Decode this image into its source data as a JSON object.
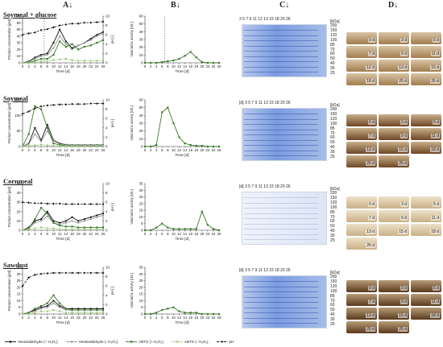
{
  "column_heads": {
    "a": "A↓",
    "b": "B↓",
    "c": "C↓",
    "d": "D↓"
  },
  "rows": [
    {
      "title": "Soymeal + glucose",
      "gel_tone": "dark",
      "photo_tone": "tan"
    },
    {
      "title": "Soymeal",
      "gel_tone": "dark",
      "photo_tone": "brown"
    },
    {
      "title": "Cornmeal",
      "gel_tone": "faint",
      "photo_tone": "cream"
    },
    {
      "title": "Sawdust",
      "gel_tone": "dark",
      "photo_tone": "darkbrown"
    }
  ],
  "axes": {
    "a_ylabel": "Product concentration [µM]",
    "a_y2label": "pH [-]",
    "b_ylabel": "Volumetric activity [U/L]",
    "xlabel": "Time [d]",
    "a_xticks": [
      "0",
      "2",
      "4",
      "6",
      "8",
      "10",
      "12",
      "14",
      "16",
      "18",
      "20",
      "22",
      "24",
      "26"
    ],
    "b_xticks": [
      "0",
      "2",
      "4",
      "6",
      "8",
      "10",
      "12",
      "14",
      "16",
      "18",
      "20",
      "22",
      "24",
      "26"
    ]
  },
  "a_yticks": [
    [
      "0",
      "10",
      "20",
      "30",
      "40",
      "50",
      "60",
      "70"
    ],
    [
      "0",
      "50",
      "100",
      "150"
    ],
    [
      "0",
      "10",
      "20",
      "30",
      "40",
      "50"
    ],
    [
      "0",
      "5",
      "10",
      "15",
      "20",
      "25",
      "30",
      "35"
    ]
  ],
  "a_y2ticks": [
    [
      "0",
      "2",
      "4",
      "6",
      "8",
      "10"
    ],
    [
      "0",
      "2",
      "4",
      "6",
      "8",
      "10"
    ],
    [
      "0",
      "2",
      "4",
      "6",
      "8",
      "10"
    ],
    [
      "0",
      "2",
      "4",
      "6",
      "8",
      "10"
    ]
  ],
  "b_yticks": [
    [
      "0",
      "10",
      "20",
      "30",
      "40",
      "50",
      "60"
    ],
    [
      "0",
      "10",
      "20",
      "30",
      "40",
      "50",
      "60"
    ],
    [
      "0",
      "5",
      "10",
      "15",
      "20",
      "25",
      "30",
      "35"
    ],
    [
      "0",
      "5",
      "10",
      "15",
      "20",
      "25",
      "30",
      "35"
    ]
  ],
  "gel": {
    "lanes_label": "[d]",
    "lanes": [
      "3",
      "5",
      "7",
      "9",
      "11",
      "12",
      "13",
      "15",
      "18",
      "20",
      "26"
    ],
    "lanes_row2": [
      "3",
      "5",
      "7",
      "9",
      "11",
      "13",
      "15",
      "18",
      "20",
      "26"
    ],
    "kda_label": "[kDa]",
    "kda": [
      "200",
      "150",
      "120",
      "100",
      "85",
      "70",
      "60",
      "50",
      "40",
      "30",
      "25"
    ]
  },
  "photos": [
    [
      "0 d",
      "3 d",
      "5 d",
      "7 d",
      "9 d",
      "11 d",
      "12 d",
      "13 d",
      "15 d",
      "18 d",
      "20 d",
      "26 d"
    ],
    [
      "0 d",
      "3 d",
      "5 d",
      "7 d",
      "9 d",
      "11 d",
      "13 d",
      "15 d",
      "18 d",
      "20 d",
      "26 d"
    ],
    [
      "0 d",
      "3 d",
      "5 d",
      "7 d",
      "9 d",
      "11 d",
      "13 d",
      "15 d",
      "18 d",
      "26 d"
    ],
    [
      "0 d",
      "3 d",
      "5 d",
      "7 d",
      "9 d",
      "11 d",
      "13 d",
      "15 d",
      "18 d",
      "20 d",
      "26 d"
    ]
  ],
  "legend": [
    {
      "label": "Veratraldehyde (+ H₂O₂)",
      "color": "#111111",
      "dash": "",
      "marker": "circle"
    },
    {
      "label": "Veratraldehyde (- H₂O₂)",
      "color": "#9a9a9a",
      "dash": "",
      "marker": "circle"
    },
    {
      "label": "ABTS (+ H₂O₂)",
      "color": "#3d7a2a",
      "dash": "",
      "marker": "square"
    },
    {
      "label": "ABTS (- H₂O₂)",
      "color": "#9fc97d",
      "dash": "2,1",
      "marker": "square"
    },
    {
      "label": "pH",
      "color": "#111111",
      "dash": "3,1.5",
      "marker": "diamond"
    }
  ],
  "chart_data": [
    {
      "type": "line",
      "panel": "A-soymeal-glucose",
      "x": [
        0,
        2,
        4,
        6,
        8,
        10,
        12,
        14,
        16,
        18,
        20,
        22,
        24,
        26
      ],
      "ylim": [
        0,
        70
      ],
      "y2lim": [
        0,
        10
      ],
      "series": [
        {
          "name": "Veratraldehyde (+ H₂O₂)",
          "values": [
            0,
            2,
            8,
            12,
            14,
            30,
            50,
            32,
            22,
            26,
            30,
            36,
            42,
            46
          ]
        },
        {
          "name": "Veratraldehyde (- H₂O₂)",
          "values": [
            0,
            1,
            6,
            10,
            12,
            22,
            40,
            28,
            20,
            26,
            30,
            34,
            40,
            44
          ]
        },
        {
          "name": "ABTS (+ H₂O₂)",
          "values": [
            0,
            0,
            3,
            6,
            6,
            12,
            32,
            24,
            28,
            20,
            24,
            26,
            30,
            34
          ]
        },
        {
          "name": "ABTS (- H₂O₂)",
          "values": [
            0,
            0,
            1,
            2,
            2,
            4,
            5,
            6,
            4,
            3,
            3,
            3,
            3,
            3
          ]
        },
        {
          "name": "pH",
          "axis": "y2",
          "values": [
            6.0,
            6.3,
            6.5,
            7.0,
            7.2,
            7.6,
            8.0,
            8.2,
            8.4,
            8.4,
            8.6,
            8.6,
            8.7,
            8.8
          ]
        }
      ]
    },
    {
      "type": "line",
      "panel": "B-soymeal-glucose",
      "x": [
        0,
        2,
        4,
        6,
        8,
        10,
        12,
        14,
        16,
        18,
        20,
        22,
        24,
        26
      ],
      "ylim": [
        0,
        60
      ],
      "series": [
        {
          "name": "ABTS (+ H₂O₂)",
          "values": [
            0,
            0,
            0,
            1,
            2,
            3,
            5,
            9,
            14,
            7,
            1,
            0,
            0,
            0
          ]
        }
      ]
    },
    {
      "type": "line",
      "panel": "A-soymeal",
      "x": [
        0,
        2,
        4,
        6,
        8,
        10,
        12,
        14,
        16,
        18,
        20,
        22,
        24,
        26
      ],
      "ylim": [
        0,
        150
      ],
      "y2lim": [
        0,
        10
      ],
      "series": [
        {
          "name": "Veratraldehyde (+ H₂O₂)",
          "values": [
            0,
            10,
            60,
            20,
            70,
            20,
            10,
            6,
            5,
            5,
            5,
            5,
            5,
            5
          ]
        },
        {
          "name": "Veratraldehyde (- H₂O₂)",
          "values": [
            0,
            8,
            40,
            16,
            50,
            18,
            8,
            5,
            4,
            4,
            4,
            4,
            4,
            4
          ]
        },
        {
          "name": "ABTS (+ H₂O₂)",
          "values": [
            0,
            40,
            130,
            120,
            60,
            10,
            5,
            3,
            2,
            2,
            2,
            2,
            2,
            2
          ]
        },
        {
          "name": "ABTS (- H₂O₂)",
          "values": [
            0,
            2,
            4,
            6,
            4,
            2,
            2,
            2,
            2,
            2,
            2,
            2,
            2,
            2
          ]
        },
        {
          "name": "pH",
          "axis": "y2",
          "values": [
            7.0,
            7.5,
            8.2,
            8.6,
            8.8,
            8.9,
            9.0,
            9.0,
            9.1,
            9.1,
            9.1,
            9.2,
            9.2,
            9.2
          ]
        }
      ]
    },
    {
      "type": "line",
      "panel": "B-soymeal",
      "x": [
        0,
        2,
        4,
        6,
        8,
        10,
        12,
        14,
        16,
        18,
        20,
        22,
        24,
        26
      ],
      "ylim": [
        0,
        60
      ],
      "series": [
        {
          "name": "ABTS (+ H₂O₂)",
          "values": [
            0,
            0,
            2,
            44,
            50,
            30,
            12,
            4,
            2,
            1,
            1,
            0,
            0,
            0
          ]
        }
      ]
    },
    {
      "type": "line",
      "panel": "A-cornmeal",
      "x": [
        0,
        2,
        4,
        6,
        8,
        10,
        12,
        14,
        16,
        18,
        20,
        22,
        24,
        26
      ],
      "ylim": [
        0,
        50
      ],
      "y2lim": [
        0,
        10
      ],
      "series": [
        {
          "name": "Veratraldehyde (+ H₂O₂)",
          "values": [
            0,
            3,
            10,
            12,
            20,
            10,
            8,
            10,
            14,
            10,
            12,
            14,
            16,
            18
          ]
        },
        {
          "name": "Veratraldehyde (- H₂O₂)",
          "values": [
            0,
            2,
            8,
            10,
            15,
            8,
            6,
            8,
            10,
            8,
            10,
            12,
            14,
            16
          ]
        },
        {
          "name": "ABTS (+ H₂O₂)",
          "values": [
            0,
            2,
            12,
            24,
            18,
            8,
            5,
            4,
            4,
            3,
            3,
            3,
            3,
            3
          ]
        },
        {
          "name": "ABTS (- H₂O₂)",
          "values": [
            0,
            1,
            2,
            3,
            2,
            2,
            1,
            1,
            1,
            1,
            1,
            1,
            1,
            1
          ]
        },
        {
          "name": "pH",
          "axis": "y2",
          "values": [
            6.0,
            5.9,
            5.8,
            5.8,
            5.7,
            5.7,
            5.7,
            5.6,
            5.6,
            5.6,
            5.6,
            5.6,
            5.6,
            5.6
          ]
        }
      ]
    },
    {
      "type": "line",
      "panel": "B-cornmeal",
      "x": [
        0,
        2,
        4,
        6,
        8,
        10,
        12,
        14,
        16,
        18,
        20,
        22,
        24,
        26
      ],
      "ylim": [
        0,
        35
      ],
      "series": [
        {
          "name": "ABTS (+ H₂O₂)",
          "values": [
            0,
            0,
            2,
            5,
            2,
            1,
            1,
            1,
            1,
            1,
            14,
            4,
            1,
            0
          ]
        }
      ]
    },
    {
      "type": "line",
      "panel": "A-sawdust",
      "x": [
        0,
        2,
        4,
        6,
        8,
        10,
        12,
        14,
        16,
        18,
        20,
        22,
        24,
        26
      ],
      "ylim": [
        0,
        35
      ],
      "y2lim": [
        0,
        10
      ],
      "series": [
        {
          "name": "Veratraldehyde (+ H₂O₂)",
          "values": [
            0,
            1,
            3,
            5,
            6,
            10,
            6,
            4,
            4,
            4,
            4,
            4,
            4,
            4
          ]
        },
        {
          "name": "Veratraldehyde (- H₂O₂)",
          "values": [
            0,
            1,
            2,
            4,
            5,
            8,
            5,
            3,
            3,
            3,
            3,
            3,
            3,
            3
          ]
        },
        {
          "name": "ABTS (+ H₂O₂)",
          "values": [
            0,
            1,
            4,
            6,
            8,
            14,
            8,
            4,
            3,
            3,
            3,
            3,
            3,
            3
          ]
        },
        {
          "name": "ABTS (- H₂O₂)",
          "values": [
            0,
            0,
            1,
            2,
            2,
            3,
            2,
            1,
            1,
            1,
            1,
            1,
            1,
            1
          ]
        },
        {
          "name": "pH",
          "axis": "y2",
          "values": [
            6.0,
            7.8,
            8.4,
            8.6,
            8.7,
            8.8,
            8.8,
            8.8,
            8.8,
            8.8,
            8.8,
            8.8,
            8.8,
            8.8
          ]
        }
      ]
    },
    {
      "type": "line",
      "panel": "B-sawdust",
      "x": [
        0,
        2,
        4,
        6,
        8,
        10,
        12,
        14,
        16,
        18,
        20,
        22,
        24,
        26
      ],
      "ylim": [
        0,
        35
      ],
      "series": [
        {
          "name": "ABTS (+ H₂O₂)",
          "values": [
            0,
            0,
            1,
            3,
            4,
            5,
            2,
            1,
            1,
            1,
            0,
            0,
            0,
            0
          ]
        }
      ]
    }
  ]
}
